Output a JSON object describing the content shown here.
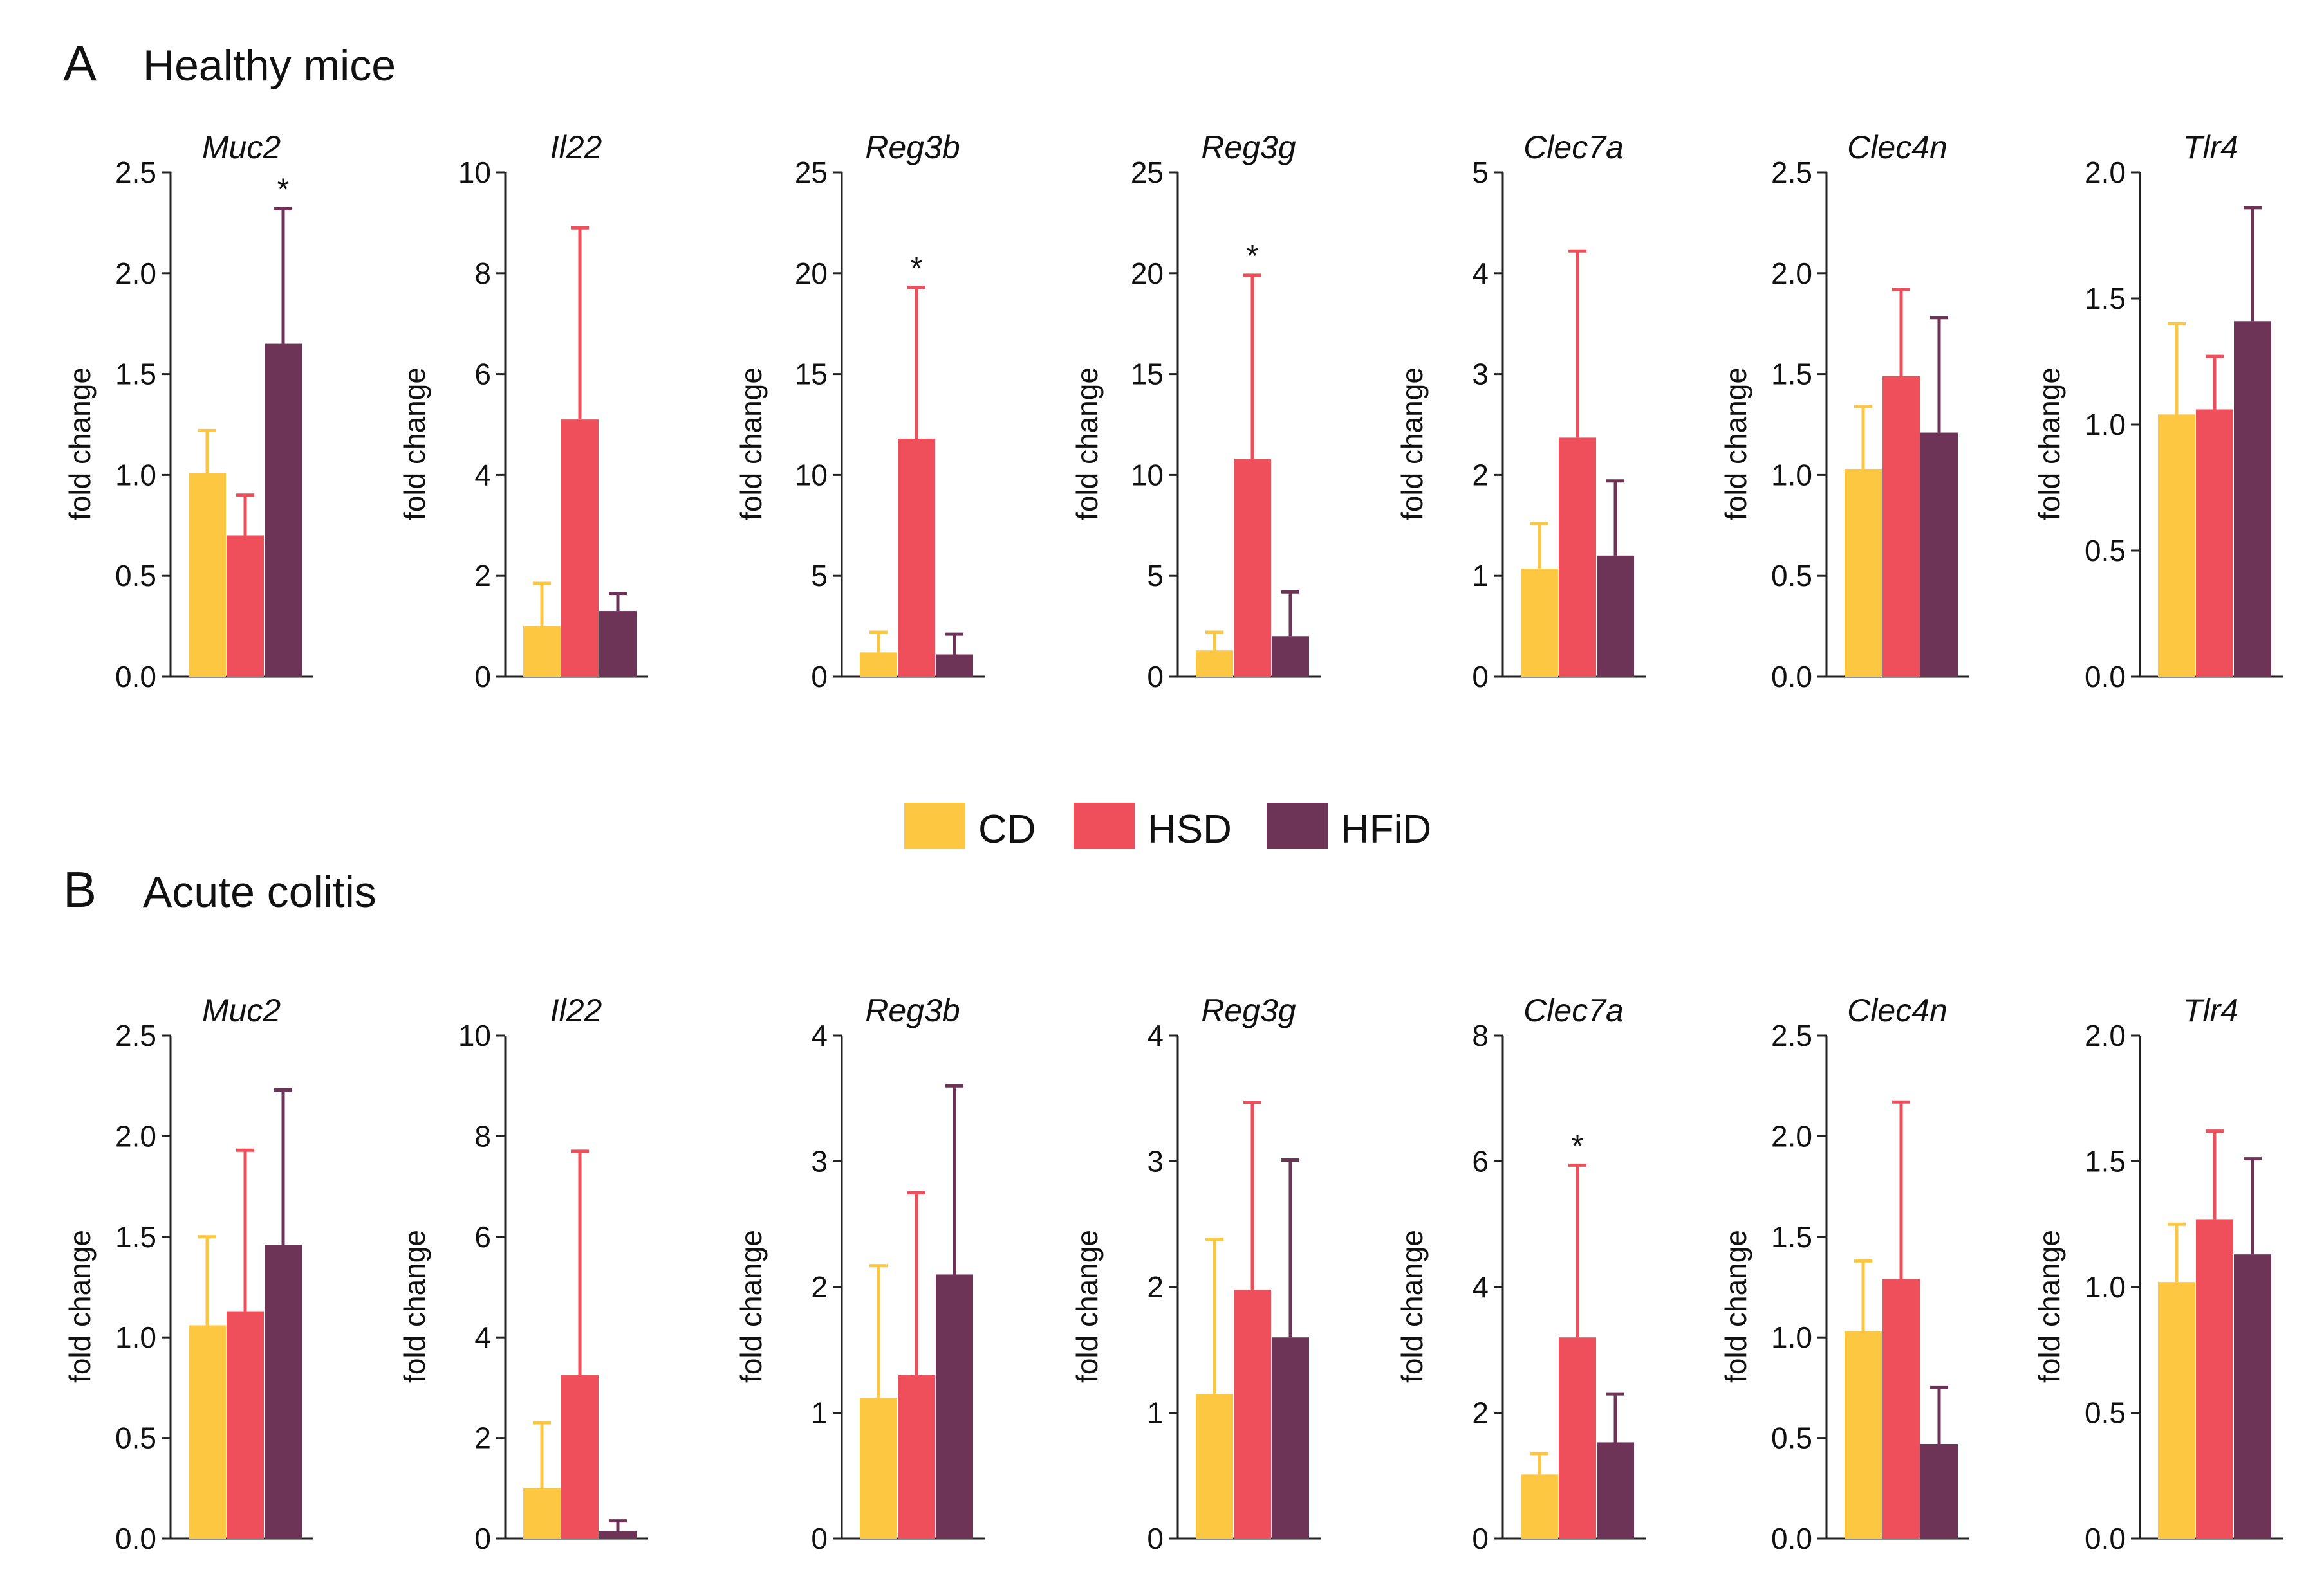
{
  "colors": {
    "CD": "#FDC741",
    "HSD": "#EF4F5A",
    "HFiD": "#6E3457",
    "axis": "#222222"
  },
  "legend": [
    {
      "key": "CD",
      "label": "CD"
    },
    {
      "key": "HSD",
      "label": "HSD"
    },
    {
      "key": "HFiD",
      "label": "HFiD"
    }
  ],
  "panels": [
    {
      "letter": "A",
      "title": "Healthy mice"
    },
    {
      "letter": "B",
      "title": "Acute colitis"
    }
  ],
  "chart_data": [
    {
      "panel": "A",
      "type": "bar",
      "title": "Muc2",
      "ylabel": "fold change",
      "ylim": [
        0,
        2.5
      ],
      "ticks": [
        "0.0",
        "0.5",
        "1.0",
        "1.5",
        "2.0",
        "2.5"
      ],
      "groups": [
        "CD",
        "HSD",
        "HFiD"
      ],
      "values": [
        1.01,
        0.7,
        1.65
      ],
      "errors": [
        0.21,
        0.2,
        0.67
      ],
      "significance": [
        "",
        "",
        "*"
      ]
    },
    {
      "panel": "A",
      "type": "bar",
      "title": "Il22",
      "ylabel": "fold change",
      "ylim": [
        0,
        10
      ],
      "ticks": [
        "0",
        "2",
        "4",
        "6",
        "8",
        "10"
      ],
      "groups": [
        "CD",
        "HSD",
        "HFiD"
      ],
      "values": [
        1.0,
        5.1,
        1.3
      ],
      "errors": [
        0.85,
        3.8,
        0.35
      ],
      "significance": [
        "",
        "",
        ""
      ]
    },
    {
      "panel": "A",
      "type": "bar",
      "title": "Reg3b",
      "ylabel": "fold change",
      "ylim": [
        0,
        25
      ],
      "ticks": [
        "0",
        "5",
        "10",
        "15",
        "20",
        "25"
      ],
      "groups": [
        "CD",
        "HSD",
        "HFiD"
      ],
      "values": [
        1.2,
        11.8,
        1.1
      ],
      "errors": [
        1.0,
        7.5,
        1.0
      ],
      "significance": [
        "",
        "*",
        ""
      ]
    },
    {
      "panel": "A",
      "type": "bar",
      "title": "Reg3g",
      "ylabel": "fold change",
      "ylim": [
        0,
        25
      ],
      "ticks": [
        "0",
        "5",
        "10",
        "15",
        "20",
        "25"
      ],
      "groups": [
        "CD",
        "HSD",
        "HFiD"
      ],
      "values": [
        1.3,
        10.8,
        2.0
      ],
      "errors": [
        0.9,
        9.1,
        2.2
      ],
      "significance": [
        "",
        "*",
        ""
      ]
    },
    {
      "panel": "A",
      "type": "bar",
      "title": "Clec7a",
      "ylabel": "fold change",
      "ylim": [
        0,
        5
      ],
      "ticks": [
        "0",
        "1",
        "2",
        "3",
        "4",
        "5"
      ],
      "groups": [
        "CD",
        "HSD",
        "HFiD"
      ],
      "values": [
        1.07,
        2.37,
        1.2
      ],
      "errors": [
        0.45,
        1.85,
        0.74
      ],
      "significance": [
        "",
        "",
        ""
      ]
    },
    {
      "panel": "A",
      "type": "bar",
      "title": "Clec4n",
      "ylabel": "fold change",
      "ylim": [
        0,
        2.5
      ],
      "ticks": [
        "0.0",
        "0.5",
        "1.0",
        "1.5",
        "2.0",
        "2.5"
      ],
      "groups": [
        "CD",
        "HSD",
        "HFiD"
      ],
      "values": [
        1.03,
        1.49,
        1.21
      ],
      "errors": [
        0.31,
        0.43,
        0.57
      ],
      "significance": [
        "",
        "",
        ""
      ]
    },
    {
      "panel": "A",
      "type": "bar",
      "title": "Tlr4",
      "ylabel": "fold change",
      "ylim": [
        0,
        2.0
      ],
      "ticks": [
        "0.0",
        "0.5",
        "1.0",
        "1.5",
        "2.0"
      ],
      "groups": [
        "CD",
        "HSD",
        "HFiD"
      ],
      "values": [
        1.04,
        1.06,
        1.41
      ],
      "errors": [
        0.36,
        0.21,
        0.45
      ],
      "significance": [
        "",
        "",
        ""
      ]
    },
    {
      "panel": "B",
      "type": "bar",
      "title": "Muc2",
      "ylabel": "fold change",
      "ylim": [
        0,
        2.5
      ],
      "ticks": [
        "0.0",
        "0.5",
        "1.0",
        "1.5",
        "2.0",
        "2.5"
      ],
      "groups": [
        "CD",
        "HSD",
        "HFiD"
      ],
      "values": [
        1.06,
        1.13,
        1.46
      ],
      "errors": [
        0.44,
        0.8,
        0.77
      ],
      "significance": [
        "",
        "",
        ""
      ]
    },
    {
      "panel": "B",
      "type": "bar",
      "title": "Il22",
      "ylabel": "fold change",
      "ylim": [
        0,
        10
      ],
      "ticks": [
        "0",
        "2",
        "4",
        "6",
        "8",
        "10"
      ],
      "groups": [
        "CD",
        "HSD",
        "HFiD"
      ],
      "values": [
        1.0,
        3.25,
        0.15
      ],
      "errors": [
        1.3,
        4.45,
        0.2
      ],
      "significance": [
        "",
        "",
        ""
      ]
    },
    {
      "panel": "B",
      "type": "bar",
      "title": "Reg3b",
      "ylabel": "fold change",
      "ylim": [
        0,
        4
      ],
      "ticks": [
        "0",
        "1",
        "2",
        "3",
        "4"
      ],
      "groups": [
        "CD",
        "HSD",
        "HFiD"
      ],
      "values": [
        1.12,
        1.3,
        2.1
      ],
      "errors": [
        1.05,
        1.45,
        1.5
      ],
      "significance": [
        "",
        "",
        ""
      ]
    },
    {
      "panel": "B",
      "type": "bar",
      "title": "Reg3g",
      "ylabel": "fold change",
      "ylim": [
        0,
        4
      ],
      "ticks": [
        "0",
        "1",
        "2",
        "3",
        "4"
      ],
      "groups": [
        "CD",
        "HSD",
        "HFiD"
      ],
      "values": [
        1.15,
        1.98,
        1.6
      ],
      "errors": [
        1.23,
        1.49,
        1.41
      ],
      "significance": [
        "",
        "",
        ""
      ]
    },
    {
      "panel": "B",
      "type": "bar",
      "title": "Clec7a",
      "ylabel": "fold change",
      "ylim": [
        0,
        8
      ],
      "ticks": [
        "0",
        "2",
        "4",
        "6",
        "8"
      ],
      "groups": [
        "CD",
        "HSD",
        "HFiD"
      ],
      "values": [
        1.02,
        3.2,
        1.53
      ],
      "errors": [
        0.33,
        2.74,
        0.77
      ],
      "significance": [
        "",
        "*",
        ""
      ]
    },
    {
      "panel": "B",
      "type": "bar",
      "title": "Clec4n",
      "ylabel": "fold change",
      "ylim": [
        0,
        2.5
      ],
      "ticks": [
        "0.0",
        "0.5",
        "1.0",
        "1.5",
        "2.0",
        "2.5"
      ],
      "groups": [
        "CD",
        "HSD",
        "HFiD"
      ],
      "values": [
        1.03,
        1.29,
        0.47
      ],
      "errors": [
        0.35,
        0.88,
        0.28
      ],
      "significance": [
        "",
        "",
        ""
      ]
    },
    {
      "panel": "B",
      "type": "bar",
      "title": "Tlr4",
      "ylabel": "fold change",
      "ylim": [
        0,
        2.0
      ],
      "ticks": [
        "0.0",
        "0.5",
        "1.0",
        "1.5",
        "2.0"
      ],
      "groups": [
        "CD",
        "HSD",
        "HFiD"
      ],
      "values": [
        1.02,
        1.27,
        1.13
      ],
      "errors": [
        0.23,
        0.35,
        0.38
      ],
      "significance": [
        "",
        "",
        ""
      ]
    }
  ]
}
